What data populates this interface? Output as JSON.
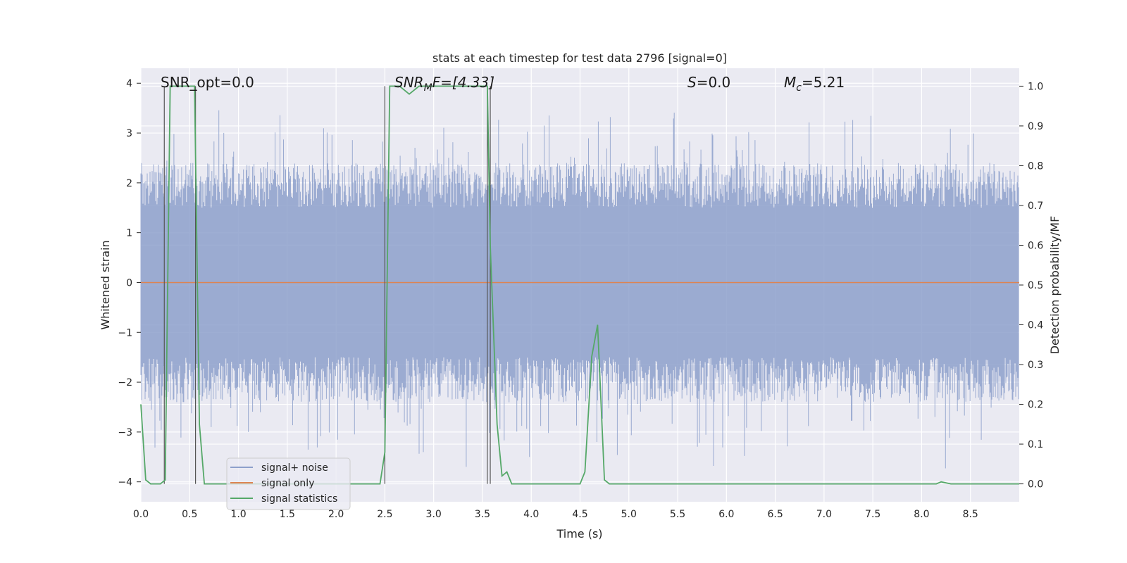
{
  "chart_data": {
    "type": "line",
    "title": "stats at each timestep for test data 2796 [signal=0]",
    "xlabel": "Time (s)",
    "ylabel_left": "Whitened strain",
    "ylabel_right": "Detection probability/MF",
    "xlim": [
      0.0,
      9.0
    ],
    "ylim_left": [
      -4.4,
      4.3
    ],
    "ylim_right": [
      -0.045,
      1.045
    ],
    "x_ticks": [
      "0.0",
      "0.5",
      "1.0",
      "1.5",
      "2.0",
      "2.5",
      "3.0",
      "3.5",
      "4.0",
      "4.5",
      "5.0",
      "5.5",
      "6.0",
      "6.5",
      "7.0",
      "7.5",
      "8.0",
      "8.5"
    ],
    "y_left_ticks": [
      "4",
      "3",
      "2",
      "1",
      "0",
      "−1",
      "−2",
      "−3",
      "−4"
    ],
    "y_right_ticks": [
      "1.0",
      "0.9",
      "0.8",
      "0.7",
      "0.6",
      "0.5",
      "0.4",
      "0.3",
      "0.2",
      "0.1",
      "0.0"
    ],
    "grid": true,
    "annotations": {
      "snr_opt": "SNR_opt=0.0",
      "snr_mf_base": "SNR",
      "snr_mf_sub": "M",
      "snr_mf_rest": "F=[4.33]",
      "s_label": "S",
      "s_rest": "=0.0",
      "mc_base": "M",
      "mc_sub": "c",
      "mc_rest": "=5.21"
    },
    "legend": {
      "placement": "lower-left",
      "entries": [
        "signal+ noise",
        "signal only",
        "signal statistics"
      ]
    },
    "series": [
      {
        "name": "signal+ noise",
        "axis": "left",
        "color": "#8da0cb",
        "description_values": "dense noise band, roughly ±2 with peaks to ±3.5"
      },
      {
        "name": "signal only",
        "axis": "left",
        "color": "#dd8452",
        "x": [
          0.0,
          9.0
        ],
        "y": [
          0.0,
          0.0
        ]
      },
      {
        "name": "signal statistics",
        "axis": "right",
        "color": "#55a868",
        "x": [
          0.0,
          0.05,
          0.1,
          0.15,
          0.2,
          0.25,
          0.3,
          0.35,
          0.4,
          0.45,
          0.5,
          0.55,
          0.6,
          0.65,
          0.7,
          0.8,
          0.9,
          1.0,
          1.5,
          2.0,
          2.45,
          2.5,
          2.55,
          2.65,
          2.75,
          2.85,
          3.0,
          3.2,
          3.4,
          3.55,
          3.58,
          3.65,
          3.7,
          3.75,
          3.8,
          3.85,
          3.95,
          4.0,
          4.2,
          4.4,
          4.5,
          4.55,
          4.62,
          4.68,
          4.75,
          4.8,
          5.0,
          5.5,
          6.0,
          6.5,
          7.0,
          7.5,
          8.0,
          8.15,
          8.2,
          8.3,
          8.5,
          9.0
        ],
        "y": [
          0.2,
          0.01,
          0.0,
          0.0,
          0.0,
          0.01,
          1.0,
          1.0,
          1.0,
          1.0,
          1.0,
          1.0,
          0.15,
          0.0,
          0.0,
          0.0,
          0.0,
          0.0,
          0.0,
          0.0,
          0.0,
          0.08,
          1.0,
          1.0,
          0.98,
          1.0,
          1.0,
          1.0,
          1.0,
          1.0,
          0.6,
          0.15,
          0.02,
          0.03,
          0.0,
          0.0,
          0.0,
          0.0,
          0.0,
          0.0,
          0.0,
          0.03,
          0.32,
          0.4,
          0.01,
          0.0,
          0.0,
          0.0,
          0.0,
          0.0,
          0.0,
          0.0,
          0.0,
          0.0,
          0.005,
          0.0,
          0.0,
          0.0
        ]
      }
    ],
    "vertical_lines_x": [
      0.24,
      0.56,
      2.5,
      3.55,
      3.58
    ]
  }
}
